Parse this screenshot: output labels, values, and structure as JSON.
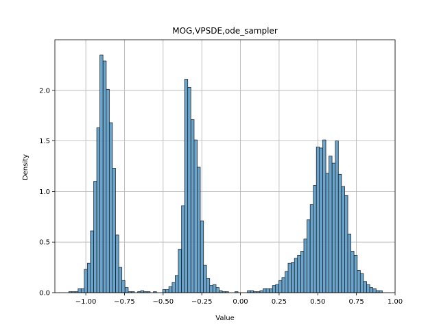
{
  "chart_data": {
    "type": "bar",
    "title": "MOG,VPSDE,ode_sampler",
    "xlabel": "Value",
    "ylabel": "Density",
    "xlim": [
      -1.2,
      1.0
    ],
    "ylim": [
      0,
      2.5
    ],
    "xticks": [
      -1.0,
      -0.75,
      -0.5,
      -0.25,
      0.0,
      0.25,
      0.5,
      0.75,
      1.0
    ],
    "xtick_labels": [
      "−1.00",
      "−0.75",
      "−0.50",
      "−0.25",
      "0.00",
      "0.25",
      "0.50",
      "0.75",
      "1.00"
    ],
    "yticks": [
      0.0,
      0.5,
      1.0,
      1.5,
      2.0
    ],
    "ytick_labels": [
      "0.0",
      "0.5",
      "1.0",
      "1.5",
      "2.0"
    ],
    "grid": true,
    "bar_color": "#5b9bc7",
    "bar_edge_color": "#1b2630",
    "bin_width": 0.0202,
    "bins": [
      {
        "x": -1.11,
        "h": 0.01
      },
      {
        "x": -1.09,
        "h": 0.01
      },
      {
        "x": -1.07,
        "h": 0.01
      },
      {
        "x": -1.05,
        "h": 0.04
      },
      {
        "x": -1.03,
        "h": 0.04
      },
      {
        "x": -1.01,
        "h": 0.23
      },
      {
        "x": -0.99,
        "h": 0.29
      },
      {
        "x": -0.97,
        "h": 0.61
      },
      {
        "x": -0.949,
        "h": 1.1
      },
      {
        "x": -0.929,
        "h": 1.63
      },
      {
        "x": -0.909,
        "h": 2.35
      },
      {
        "x": -0.888,
        "h": 2.29
      },
      {
        "x": -0.868,
        "h": 2.01
      },
      {
        "x": -0.848,
        "h": 1.68
      },
      {
        "x": -0.828,
        "h": 1.23
      },
      {
        "x": -0.807,
        "h": 0.57
      },
      {
        "x": -0.787,
        "h": 0.25
      },
      {
        "x": -0.767,
        "h": 0.12
      },
      {
        "x": -0.746,
        "h": 0.05
      },
      {
        "x": -0.726,
        "h": 0.01
      },
      {
        "x": -0.706,
        "h": 0.01
      },
      {
        "x": -0.665,
        "h": 0.01
      },
      {
        "x": -0.645,
        "h": 0.02
      },
      {
        "x": -0.625,
        "h": 0.01
      },
      {
        "x": -0.604,
        "h": 0.01
      },
      {
        "x": -0.563,
        "h": 0.01
      },
      {
        "x": -0.503,
        "h": 0.03
      },
      {
        "x": -0.483,
        "h": 0.03
      },
      {
        "x": -0.463,
        "h": 0.06
      },
      {
        "x": -0.442,
        "h": 0.1
      },
      {
        "x": -0.422,
        "h": 0.17
      },
      {
        "x": -0.402,
        "h": 0.43
      },
      {
        "x": -0.381,
        "h": 0.86
      },
      {
        "x": -0.361,
        "h": 2.11
      },
      {
        "x": -0.341,
        "h": 2.03
      },
      {
        "x": -0.32,
        "h": 1.71
      },
      {
        "x": -0.3,
        "h": 1.51
      },
      {
        "x": -0.28,
        "h": 1.24
      },
      {
        "x": -0.259,
        "h": 0.71
      },
      {
        "x": -0.239,
        "h": 0.27
      },
      {
        "x": -0.219,
        "h": 0.14
      },
      {
        "x": -0.199,
        "h": 0.07
      },
      {
        "x": -0.178,
        "h": 0.08
      },
      {
        "x": -0.158,
        "h": 0.05
      },
      {
        "x": -0.138,
        "h": 0.02
      },
      {
        "x": -0.117,
        "h": 0.01
      },
      {
        "x": -0.097,
        "h": 0.01
      },
      {
        "x": -0.036,
        "h": 0.01
      },
      {
        "x": 0.045,
        "h": 0.02
      },
      {
        "x": 0.065,
        "h": 0.02
      },
      {
        "x": 0.085,
        "h": 0.01
      },
      {
        "x": 0.105,
        "h": 0.01
      },
      {
        "x": 0.126,
        "h": 0.02
      },
      {
        "x": 0.146,
        "h": 0.04
      },
      {
        "x": 0.166,
        "h": 0.04
      },
      {
        "x": 0.187,
        "h": 0.04
      },
      {
        "x": 0.207,
        "h": 0.07
      },
      {
        "x": 0.227,
        "h": 0.08
      },
      {
        "x": 0.248,
        "h": 0.12
      },
      {
        "x": 0.268,
        "h": 0.15
      },
      {
        "x": 0.288,
        "h": 0.21
      },
      {
        "x": 0.308,
        "h": 0.29
      },
      {
        "x": 0.329,
        "h": 0.3
      },
      {
        "x": 0.349,
        "h": 0.34
      },
      {
        "x": 0.369,
        "h": 0.37
      },
      {
        "x": 0.39,
        "h": 0.41
      },
      {
        "x": 0.41,
        "h": 0.53
      },
      {
        "x": 0.43,
        "h": 0.72
      },
      {
        "x": 0.451,
        "h": 0.87
      },
      {
        "x": 0.471,
        "h": 1.06
      },
      {
        "x": 0.491,
        "h": 1.44
      },
      {
        "x": 0.511,
        "h": 1.43
      },
      {
        "x": 0.532,
        "h": 1.51
      },
      {
        "x": 0.552,
        "h": 1.18
      },
      {
        "x": 0.572,
        "h": 1.35
      },
      {
        "x": 0.593,
        "h": 1.28
      },
      {
        "x": 0.613,
        "h": 1.5
      },
      {
        "x": 0.633,
        "h": 1.17
      },
      {
        "x": 0.654,
        "h": 1.05
      },
      {
        "x": 0.674,
        "h": 0.96
      },
      {
        "x": 0.694,
        "h": 0.58
      },
      {
        "x": 0.714,
        "h": 0.41
      },
      {
        "x": 0.735,
        "h": 0.37
      },
      {
        "x": 0.755,
        "h": 0.22
      },
      {
        "x": 0.775,
        "h": 0.19
      },
      {
        "x": 0.796,
        "h": 0.11
      },
      {
        "x": 0.816,
        "h": 0.08
      },
      {
        "x": 0.836,
        "h": 0.05
      },
      {
        "x": 0.857,
        "h": 0.04
      },
      {
        "x": 0.877,
        "h": 0.02
      },
      {
        "x": 0.897,
        "h": 0.02
      }
    ]
  }
}
